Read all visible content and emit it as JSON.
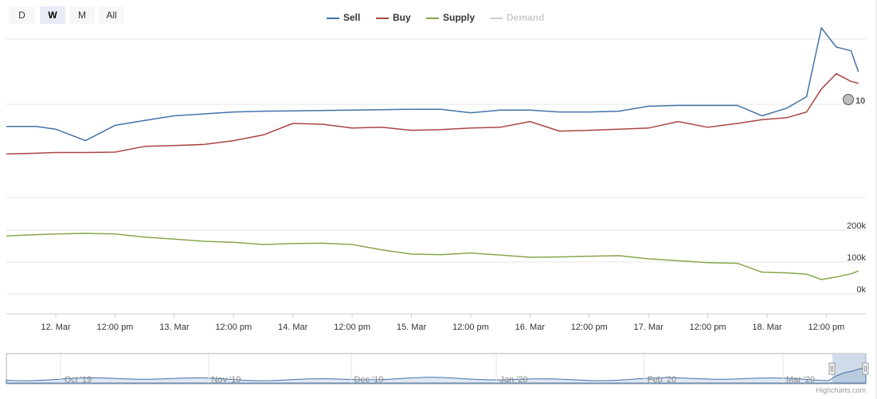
{
  "range_selector": {
    "buttons": [
      {
        "label": "D",
        "active": false
      },
      {
        "label": "W",
        "active": true
      },
      {
        "label": "M",
        "active": false
      },
      {
        "label": "All",
        "active": false
      }
    ]
  },
  "legend": {
    "items": [
      {
        "label": "Sell",
        "color": "#4572a7",
        "visible": true
      },
      {
        "label": "Buy",
        "color": "#aa4643",
        "visible": true
      },
      {
        "label": "Supply",
        "color": "#89a54e",
        "visible": true
      },
      {
        "label": "Demand",
        "color": "#cccccc",
        "visible": false
      }
    ]
  },
  "chart_data": {
    "type": "line",
    "x_axis": {
      "type": "datetime",
      "tick_labels": [
        "12. Mar",
        "12:00 pm",
        "13. Mar",
        "12:00 pm",
        "14. Mar",
        "12:00 pm",
        "15. Mar",
        "12:00 pm",
        "16. Mar",
        "12:00 pm",
        "17. Mar",
        "12:00 pm",
        "18. Mar",
        "12:00 pm"
      ]
    },
    "price_axis": {
      "tick_labels": [
        "10"
      ],
      "grid": true
    },
    "volume_axis": {
      "tick_labels": [
        "200k",
        "100k",
        "0k"
      ],
      "ylim": [
        0,
        200000
      ],
      "grid": true
    },
    "series": [
      {
        "name": "Sell",
        "color": "#4572a7",
        "panel": "price",
        "x": [
          "2020-03-11T14:00",
          "2020-03-11T20:00",
          "2020-03-12T00:00",
          "2020-03-12T06:00",
          "2020-03-12T12:00",
          "2020-03-12T18:00",
          "2020-03-13T00:00",
          "2020-03-13T06:00",
          "2020-03-13T12:00",
          "2020-03-13T18:00",
          "2020-03-14T00:00",
          "2020-03-14T06:00",
          "2020-03-14T12:00",
          "2020-03-14T18:00",
          "2020-03-15T00:00",
          "2020-03-15T06:00",
          "2020-03-15T12:00",
          "2020-03-15T18:00",
          "2020-03-16T00:00",
          "2020-03-16T06:00",
          "2020-03-16T12:00",
          "2020-03-16T18:00",
          "2020-03-17T00:00",
          "2020-03-17T06:00",
          "2020-03-17T12:00",
          "2020-03-17T18:00",
          "2020-03-17T23:00",
          "2020-03-18T04:00",
          "2020-03-18T08:00",
          "2020-03-18T11:00",
          "2020-03-18T14:00",
          "2020-03-18T17:00",
          "2020-03-18T18:30"
        ],
        "y": [
          9.42,
          9.42,
          9.35,
          9.05,
          9.45,
          9.58,
          9.7,
          9.75,
          9.8,
          9.82,
          9.83,
          9.84,
          9.85,
          9.86,
          9.87,
          9.87,
          9.78,
          9.85,
          9.85,
          9.8,
          9.8,
          9.82,
          9.95,
          9.97,
          9.97,
          9.97,
          9.7,
          9.9,
          10.2,
          12.0,
          11.5,
          11.4,
          10.85
        ]
      },
      {
        "name": "Buy",
        "color": "#aa4643",
        "panel": "price",
        "x": [
          "2020-03-11T14:00",
          "2020-03-11T20:00",
          "2020-03-12T00:00",
          "2020-03-12T06:00",
          "2020-03-12T12:00",
          "2020-03-12T18:00",
          "2020-03-13T00:00",
          "2020-03-13T06:00",
          "2020-03-13T12:00",
          "2020-03-13T18:00",
          "2020-03-14T00:00",
          "2020-03-14T06:00",
          "2020-03-14T12:00",
          "2020-03-14T18:00",
          "2020-03-15T00:00",
          "2020-03-15T06:00",
          "2020-03-15T12:00",
          "2020-03-15T18:00",
          "2020-03-16T00:00",
          "2020-03-16T06:00",
          "2020-03-16T12:00",
          "2020-03-16T18:00",
          "2020-03-17T00:00",
          "2020-03-17T06:00",
          "2020-03-17T12:00",
          "2020-03-17T18:00",
          "2020-03-17T23:00",
          "2020-03-18T04:00",
          "2020-03-18T08:00",
          "2020-03-18T11:00",
          "2020-03-18T14:00",
          "2020-03-18T17:00",
          "2020-03-18T18:30"
        ],
        "y": [
          8.7,
          8.72,
          8.74,
          8.74,
          8.75,
          8.9,
          8.92,
          8.95,
          9.05,
          9.2,
          9.5,
          9.48,
          9.38,
          9.4,
          9.32,
          9.34,
          9.38,
          9.4,
          9.55,
          9.3,
          9.32,
          9.35,
          9.38,
          9.55,
          9.4,
          9.5,
          9.6,
          9.65,
          9.8,
          10.4,
          10.8,
          10.6,
          10.55
        ]
      },
      {
        "name": "Supply",
        "color": "#89a54e",
        "panel": "volume",
        "x": [
          "2020-03-11T14:00",
          "2020-03-11T20:00",
          "2020-03-12T00:00",
          "2020-03-12T06:00",
          "2020-03-12T12:00",
          "2020-03-12T18:00",
          "2020-03-13T00:00",
          "2020-03-13T06:00",
          "2020-03-13T12:00",
          "2020-03-13T18:00",
          "2020-03-14T00:00",
          "2020-03-14T06:00",
          "2020-03-14T12:00",
          "2020-03-14T18:00",
          "2020-03-15T00:00",
          "2020-03-15T06:00",
          "2020-03-15T12:00",
          "2020-03-15T18:00",
          "2020-03-16T00:00",
          "2020-03-16T06:00",
          "2020-03-16T12:00",
          "2020-03-16T18:00",
          "2020-03-17T00:00",
          "2020-03-17T06:00",
          "2020-03-17T12:00",
          "2020-03-17T18:00",
          "2020-03-17T23:00",
          "2020-03-18T04:00",
          "2020-03-18T08:00",
          "2020-03-18T11:00",
          "2020-03-18T14:00",
          "2020-03-18T17:00",
          "2020-03-18T18:30"
        ],
        "y": [
          182000,
          186000,
          188000,
          190000,
          188000,
          178000,
          172000,
          165000,
          162000,
          155000,
          158000,
          159000,
          155000,
          138000,
          125000,
          123000,
          128000,
          122000,
          115000,
          116000,
          118000,
          120000,
          110000,
          104000,
          98000,
          96000,
          68000,
          66000,
          62000,
          45000,
          53000,
          63000,
          72000
        ]
      },
      {
        "name": "Demand",
        "color": "#cccccc",
        "panel": "volume",
        "visible": false
      }
    ]
  },
  "navigator": {
    "labels": [
      "Oct '19",
      "Nov '19",
      "Dec '19",
      "Jan '20",
      "Feb '20",
      "Mar '20"
    ]
  },
  "credits": "Highcharts.com"
}
